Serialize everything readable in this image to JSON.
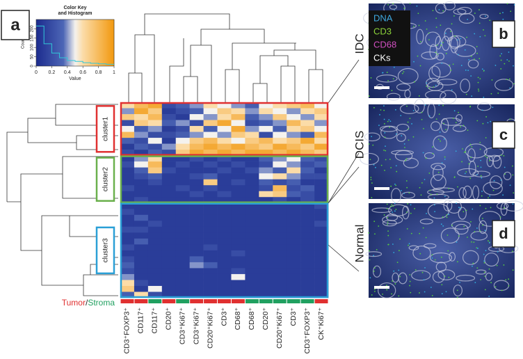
{
  "figure": {
    "panels": [
      "a",
      "b",
      "c",
      "d"
    ],
    "color_key": {
      "title": "Color Key",
      "subtitle": "and Histogram",
      "xlabel": "Value",
      "ylabel": "Count",
      "xlim": [
        0,
        1
      ],
      "xticks": [
        0,
        0.2,
        0.4,
        0.6,
        0.8,
        1
      ],
      "ylim": [
        0,
        250
      ],
      "yticks": [
        0,
        50,
        100,
        150,
        200
      ],
      "histogram": {
        "bins": [
          0,
          0.1,
          0.2,
          0.3,
          0.4,
          0.5,
          0.6,
          0.7,
          0.8,
          0.9,
          1
        ],
        "counts": [
          215,
          120,
          70,
          45,
          30,
          25,
          18,
          15,
          12,
          10
        ],
        "color": "#30c8d8"
      }
    },
    "colorscale": {
      "values": [
        0,
        0.35,
        0.5,
        0.6,
        1
      ],
      "colors": [
        "#1c2c8e",
        "#4d66b6",
        "#f4f2ee",
        "#fbdca8",
        "#f2980e"
      ]
    },
    "chart_data": {
      "type": "heatmap",
      "categories": [
        "CD3⁺FOXP3⁺",
        "CD117⁺",
        "CD117⁺",
        "CD20⁺",
        "CD3⁺Ki67⁺",
        "CD3⁺Ki67⁺",
        "CD20⁺Ki67⁺",
        "CD3⁺",
        "CD68⁺",
        "CD68⁺",
        "CD20⁺",
        "CD20⁺Ki67⁺",
        "CD3⁺",
        "CD3⁺FOXP3⁺",
        "CK⁺Ki67⁺"
      ],
      "compartment_colors": [
        "#e03030",
        "#e03030",
        "#20a060",
        "#e03030",
        "#20a060",
        "#e03030",
        "#e03030",
        "#e03030",
        "#e03030",
        "#20a060",
        "#20a060",
        "#20a060",
        "#20a060",
        "#20a060",
        "#e03030"
      ],
      "compartment_legend": [
        {
          "name": "Tumor",
          "color": "#e03030"
        },
        {
          "name": "Stroma",
          "color": "#20a060"
        }
      ],
      "compartment_separator": "/",
      "clusters": [
        {
          "name": "cluster1",
          "color": "#e03030",
          "rows": 9
        },
        {
          "name": "cluster2",
          "color": "#6ab04c",
          "rows": 8
        },
        {
          "name": "cluster3",
          "color": "#2a9fd6",
          "rows": 16
        }
      ],
      "values": [
        [
          0.6,
          0.8,
          0.9,
          0.2,
          0.3,
          0.4,
          0.6,
          0.5,
          0.4,
          0.3,
          0.5,
          0.6,
          0.7,
          0.8,
          0.5
        ],
        [
          0.4,
          0.9,
          0.7,
          0.1,
          0.2,
          0.3,
          0.5,
          0.7,
          0.6,
          0.4,
          0.6,
          0.5,
          0.4,
          0.6,
          0.7
        ],
        [
          0.7,
          0.6,
          0.8,
          0.2,
          0.1,
          0.5,
          0.4,
          0.6,
          0.8,
          0.3,
          0.4,
          0.7,
          0.5,
          0.4,
          0.6
        ],
        [
          0.2,
          0.7,
          0.6,
          0.3,
          0.4,
          0.2,
          0.7,
          0.9,
          0.5,
          0.2,
          0.3,
          0.4,
          0.8,
          0.6,
          0.4
        ],
        [
          0.5,
          0.3,
          0.4,
          0.1,
          0.2,
          0.6,
          0.3,
          0.5,
          0.9,
          0.4,
          0.5,
          0.3,
          0.6,
          0.7,
          0.5
        ],
        [
          0.8,
          0.4,
          0.2,
          0.2,
          0.3,
          0.4,
          0.5,
          0.4,
          0.7,
          0.6,
          0.2,
          0.5,
          0.4,
          0.3,
          0.8
        ],
        [
          0.3,
          0.2,
          0.5,
          0.1,
          0.5,
          0.7,
          0.8,
          0.6,
          0.5,
          0.7,
          0.8,
          0.6,
          0.7,
          0.9,
          0.6
        ],
        [
          0.1,
          0.3,
          0.2,
          0.4,
          0.6,
          0.8,
          0.9,
          0.8,
          0.9,
          0.8,
          0.7,
          0.9,
          0.8,
          0.7,
          0.9
        ],
        [
          0.2,
          0.1,
          0.3,
          0.2,
          0.7,
          0.9,
          0.8,
          0.9,
          0.8,
          0.9,
          0.9,
          0.8,
          0.9,
          0.8,
          0.7
        ],
        [
          0.1,
          0.4,
          0.6,
          0.1,
          0.1,
          0.2,
          0.1,
          0.2,
          0.1,
          0.1,
          0.3,
          0.4,
          0.5,
          0.3,
          0.2
        ],
        [
          0.2,
          0.5,
          0.8,
          0.1,
          0.2,
          0.1,
          0.2,
          0.1,
          0.2,
          0.1,
          0.2,
          0.5,
          0.4,
          0.2,
          0.3
        ],
        [
          0.1,
          0.3,
          0.7,
          0.2,
          0.1,
          0.1,
          0.1,
          0.2,
          0.1,
          0.2,
          0.4,
          0.3,
          0.6,
          0.3,
          0.1
        ],
        [
          0.1,
          0.2,
          0.3,
          0.1,
          0.1,
          0.2,
          0.3,
          0.1,
          0.1,
          0.1,
          0.5,
          0.6,
          0.4,
          0.2,
          0.2
        ],
        [
          0.1,
          0.1,
          0.2,
          0.1,
          0.1,
          0.1,
          0.7,
          0.1,
          0.2,
          0.1,
          0.3,
          0.2,
          0.3,
          0.1,
          0.1
        ],
        [
          0.2,
          0.1,
          0.1,
          0.1,
          0.2,
          0.1,
          0.2,
          0.1,
          0.1,
          0.1,
          0.2,
          0.8,
          0.2,
          0.3,
          0.1
        ],
        [
          0.1,
          0.1,
          0.1,
          0.1,
          0.1,
          0.2,
          0.1,
          0.2,
          0.1,
          0.1,
          0.6,
          0.7,
          0.3,
          0.2,
          0.1
        ],
        [
          0.1,
          0.2,
          0.1,
          0.1,
          0.1,
          0.1,
          0.1,
          0.1,
          0.1,
          0.1,
          0.1,
          0.2,
          0.1,
          0.2,
          0.1
        ],
        [
          0.1,
          0.1,
          0.1,
          0.1,
          0.1,
          0.1,
          0.1,
          0.1,
          0.1,
          0.1,
          0.1,
          0.1,
          0.1,
          0.1,
          0.2
        ],
        [
          0.2,
          0.1,
          0.1,
          0.1,
          0.1,
          0.1,
          0.1,
          0.1,
          0.1,
          0.1,
          0.1,
          0.1,
          0.1,
          0.1,
          0.1
        ],
        [
          0.1,
          0.3,
          0.1,
          0.1,
          0.1,
          0.1,
          0.1,
          0.1,
          0.1,
          0.1,
          0.1,
          0.1,
          0.1,
          0.1,
          0.1
        ],
        [
          0.1,
          0.1,
          0.2,
          0.1,
          0.1,
          0.1,
          0.1,
          0.1,
          0.1,
          0.1,
          0.1,
          0.1,
          0.1,
          0.1,
          0.2
        ],
        [
          0.2,
          0.2,
          0.1,
          0.1,
          0.1,
          0.1,
          0.1,
          0.1,
          0.1,
          0.1,
          0.1,
          0.1,
          0.1,
          0.1,
          0.1
        ],
        [
          0.1,
          0.1,
          0.1,
          0.1,
          0.1,
          0.1,
          0.1,
          0.1,
          0.1,
          0.1,
          0.1,
          0.1,
          0.1,
          0.1,
          0.1
        ],
        [
          0.1,
          0.3,
          0.1,
          0.1,
          0.1,
          0.1,
          0.1,
          0.1,
          0.1,
          0.1,
          0.1,
          0.1,
          0.1,
          0.1,
          0.1
        ],
        [
          0.2,
          0.1,
          0.1,
          0.1,
          0.1,
          0.1,
          0.2,
          0.1,
          0.1,
          0.1,
          0.1,
          0.1,
          0.1,
          0.1,
          0.1
        ],
        [
          0.1,
          0.1,
          0.1,
          0.1,
          0.1,
          0.1,
          0.1,
          0.1,
          0.2,
          0.1,
          0.1,
          0.1,
          0.1,
          0.1,
          0.1
        ],
        [
          0.2,
          0.1,
          0.1,
          0.1,
          0.1,
          0.3,
          0.1,
          0.1,
          0.1,
          0.1,
          0.1,
          0.1,
          0.1,
          0.1,
          0.1
        ],
        [
          0.3,
          0.1,
          0.1,
          0.1,
          0.1,
          0.4,
          0.3,
          0.1,
          0.1,
          0.1,
          0.1,
          0.1,
          0.1,
          0.1,
          0.1
        ],
        [
          0.2,
          0.1,
          0.1,
          0.1,
          0.1,
          0.1,
          0.1,
          0.1,
          0.2,
          0.1,
          0.1,
          0.1,
          0.1,
          0.1,
          0.1
        ],
        [
          0.4,
          0.1,
          0.1,
          0.1,
          0.1,
          0.1,
          0.1,
          0.1,
          0.5,
          0.1,
          0.1,
          0.1,
          0.1,
          0.1,
          0.1
        ],
        [
          0.6,
          0.2,
          0.1,
          0.1,
          0.1,
          0.1,
          0.1,
          0.1,
          0.1,
          0.1,
          0.1,
          0.1,
          0.1,
          0.1,
          0.1
        ],
        [
          0.7,
          0.1,
          0.5,
          0.1,
          0.1,
          0.1,
          0.1,
          0.1,
          0.1,
          0.1,
          0.1,
          0.1,
          0.1,
          0.1,
          0.1
        ],
        [
          0.3,
          0.6,
          0.2,
          0.1,
          0.1,
          0.1,
          0.1,
          0.1,
          0.1,
          0.1,
          0.1,
          0.1,
          0.1,
          0.1,
          0.1
        ]
      ]
    },
    "images": [
      {
        "label": "IDC",
        "panel": "b"
      },
      {
        "label": "DCIS",
        "panel": "c"
      },
      {
        "label": "Normal",
        "panel": "d"
      }
    ],
    "channel_legend": [
      {
        "name": "DNA",
        "color": "#3fa9e0"
      },
      {
        "name": "CD3",
        "color": "#8cd43a"
      },
      {
        "name": "CD68",
        "color": "#d04fc0"
      },
      {
        "name": "CKs",
        "color": "#ffffff"
      }
    ]
  }
}
